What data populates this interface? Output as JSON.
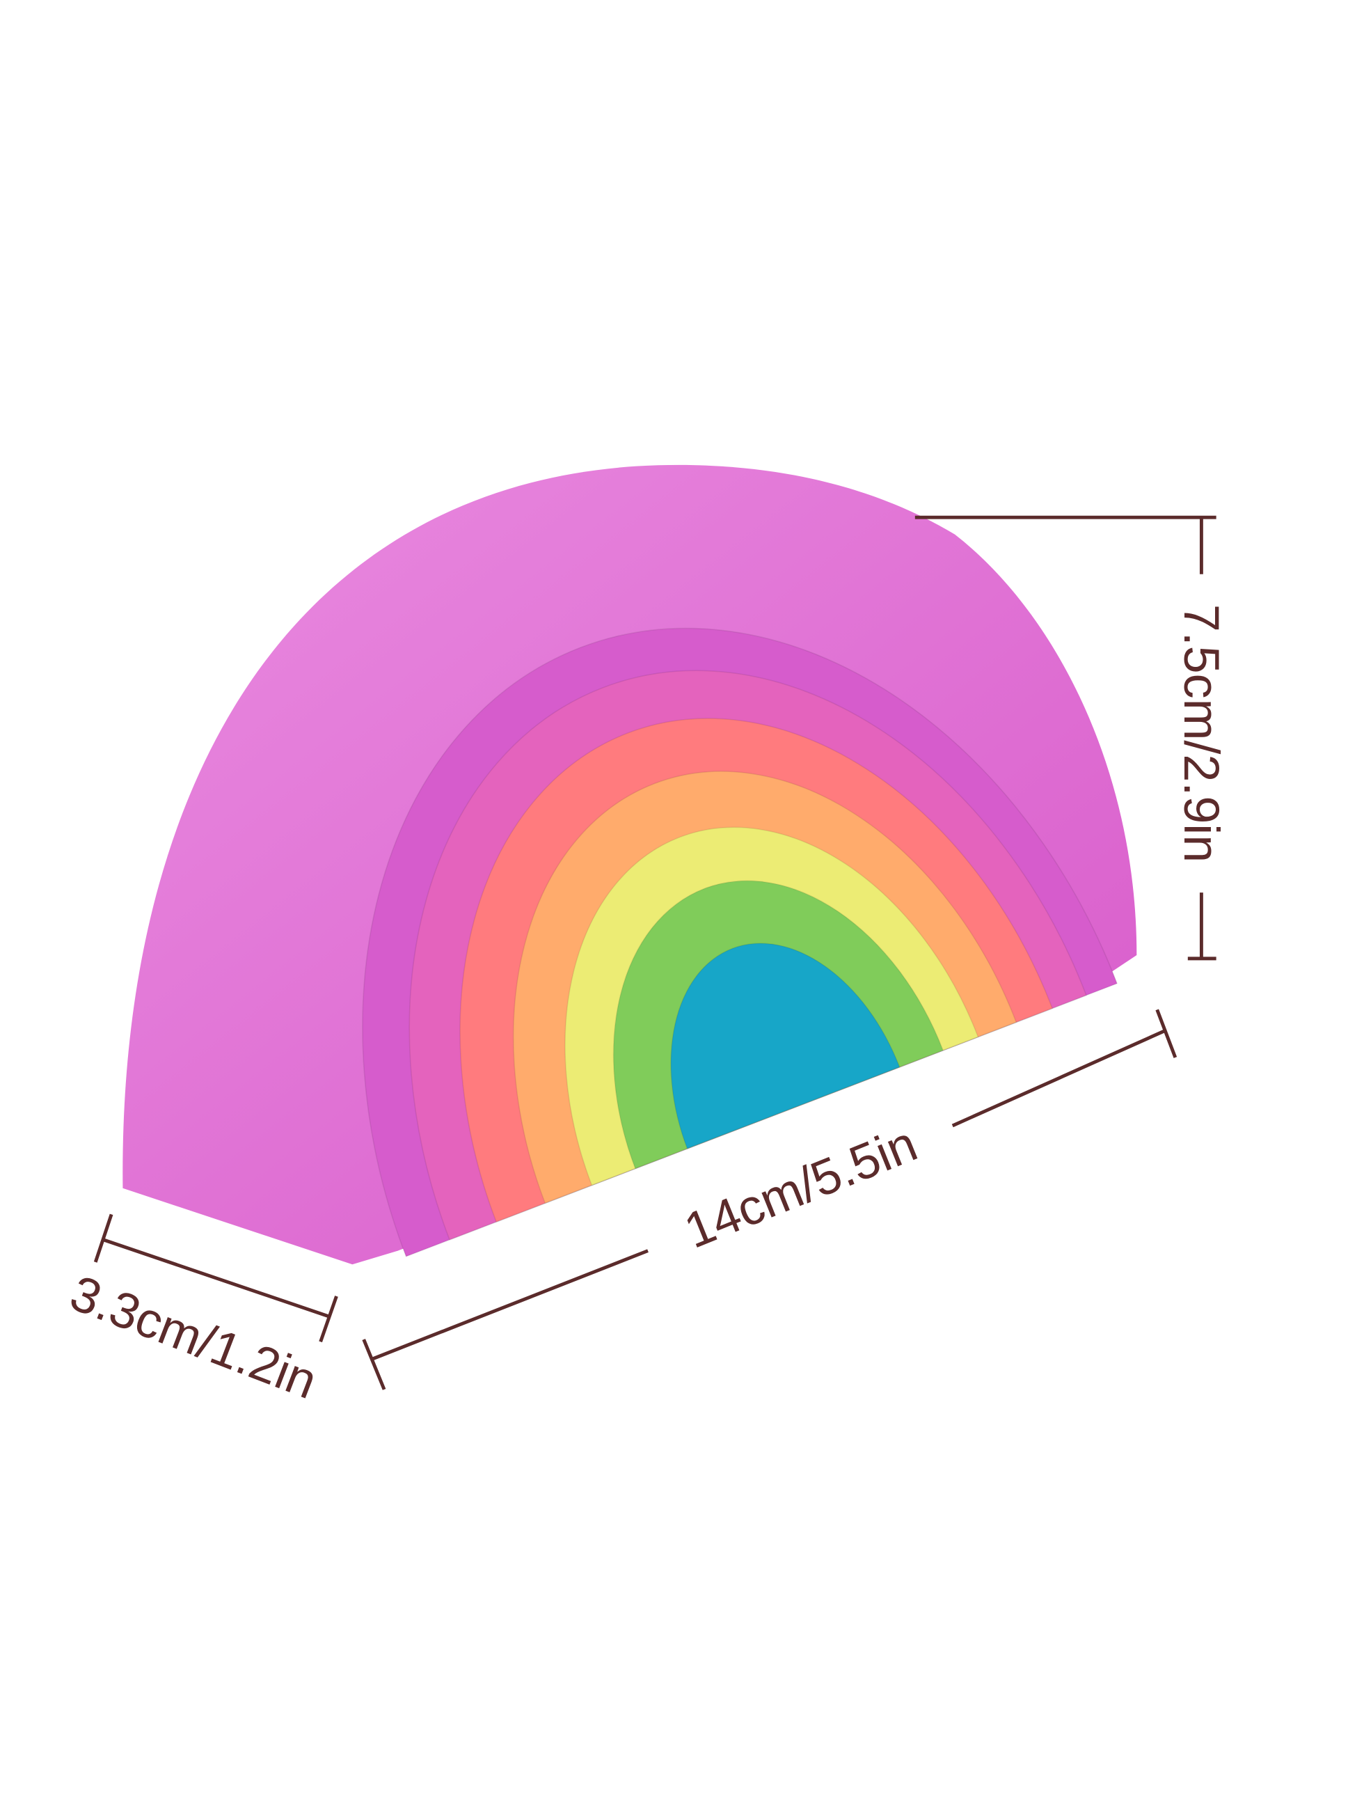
{
  "product": {
    "arch_colors": [
      "#d65ccc",
      "#e463bd",
      "#ff7b7e",
      "#ffab6c",
      "#ecec74",
      "#80cc5a",
      "#17a6c8"
    ],
    "top_surface_color": "#e47fda",
    "dimension_color": "#5b2b2b"
  },
  "dimensions": {
    "height": "7.5cm/2.9in",
    "length": "14cm/5.5in",
    "depth": "3.3cm/1.2in"
  }
}
